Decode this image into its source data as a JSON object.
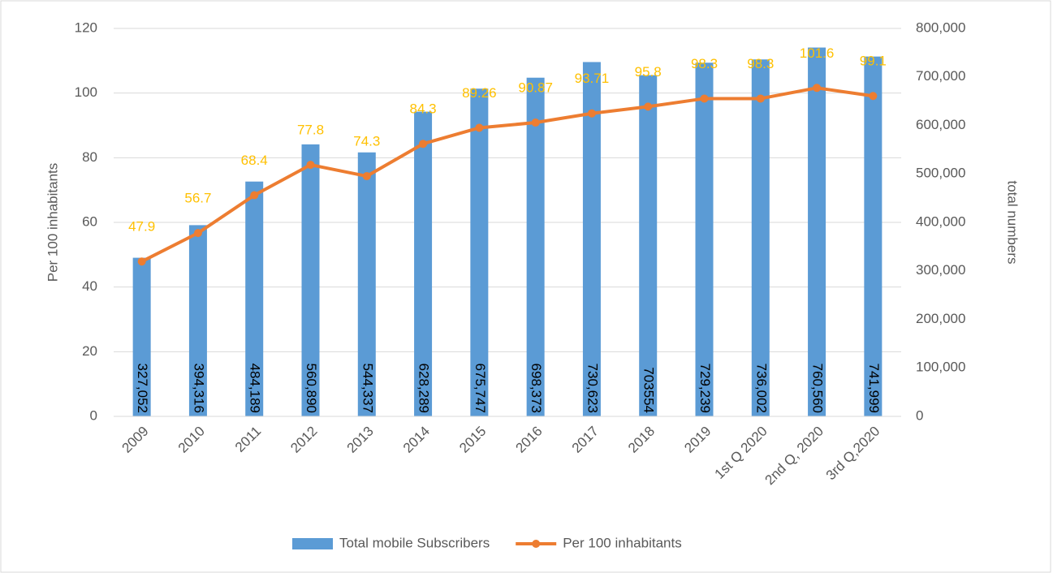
{
  "chart_data": {
    "type": "bar",
    "categories": [
      "2009",
      "2010",
      "2011",
      "2012",
      "2013",
      "2014",
      "2015",
      "2016",
      "2017",
      "2018",
      "2019",
      "1st Q 2020",
      "2nd Q, 2020",
      "3rd Q,2020"
    ],
    "series": [
      {
        "name": "Total mobile Subscribers",
        "type": "bar",
        "axis": "y2",
        "color": "#5b9bd5",
        "values": [
          327052,
          394316,
          484189,
          560890,
          544337,
          628289,
          675747,
          698373,
          730623,
          703554,
          729239,
          736002,
          760560,
          741999
        ],
        "value_labels": [
          "327,052",
          "394,316",
          "484,189",
          "560,890",
          "544,337",
          "628,289",
          "675,747",
          "698,373",
          "730,623",
          "703554",
          "729,239",
          "736,002",
          "760,560",
          "741,999"
        ]
      },
      {
        "name": "Per 100 inhabitants",
        "type": "line",
        "color": "#ed7d31",
        "label_color": "#ffc000",
        "values": [
          47.9,
          56.7,
          68.4,
          77.8,
          74.3,
          84.3,
          89.26,
          90.87,
          93.71,
          95.8,
          98.3,
          98.3,
          101.6,
          99.1
        ]
      }
    ],
    "ylabel": "Per 100 inhabitants",
    "y2label": "total numbers",
    "ylim": [
      0,
      120
    ],
    "yticks": [
      0,
      20,
      40,
      60,
      80,
      100,
      120
    ],
    "y2lim": [
      0,
      800000
    ],
    "y2ticks": [
      0,
      {
        "value": 100000,
        "label": "100,000"
      },
      {
        "value": 200000,
        "label": "200,000"
      },
      {
        "value": 300000,
        "label": "300,000"
      },
      {
        "value": 400000,
        "label": "400,000"
      },
      {
        "value": 500000,
        "label": "500,000"
      },
      {
        "value": 600000,
        "label": "600,000"
      },
      {
        "value": 700000,
        "label": "700,000"
      },
      {
        "value": 800000,
        "label": "800,000"
      }
    ],
    "grid": true,
    "legend": "bottom"
  }
}
